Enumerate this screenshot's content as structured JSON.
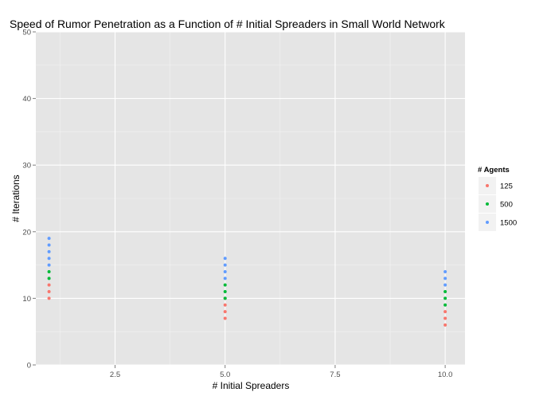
{
  "chart_data": {
    "type": "scatter",
    "title": "Speed of Rumor Penetration as a Function of # Initial Spreaders in Small World Network",
    "xlabel": "# Initial Spreaders",
    "ylabel": "# Iterations",
    "xlim": [
      0.7,
      10.45
    ],
    "ylim": [
      0,
      50
    ],
    "x_ticks": [
      2.5,
      5.0,
      7.5,
      10.0
    ],
    "x_tick_labels": [
      "2.5",
      "5.0",
      "7.5",
      "10.0"
    ],
    "y_ticks": [
      0,
      10,
      20,
      30,
      40,
      50
    ],
    "y_tick_labels": [
      "0",
      "10",
      "20",
      "30",
      "40",
      "50"
    ],
    "grid": true,
    "legend": {
      "title": "# Agents",
      "position": "right"
    },
    "series": [
      {
        "name": "125",
        "color": "#F8766D",
        "points": [
          [
            1,
            10
          ],
          [
            1,
            11
          ],
          [
            1,
            12
          ],
          [
            5,
            7
          ],
          [
            5,
            8
          ],
          [
            5,
            9
          ],
          [
            5,
            10
          ],
          [
            10,
            6
          ],
          [
            10,
            7
          ],
          [
            10,
            8
          ]
        ]
      },
      {
        "name": "500",
        "color": "#00BA38",
        "points": [
          [
            1,
            13
          ],
          [
            1,
            14
          ],
          [
            5,
            10
          ],
          [
            5,
            11
          ],
          [
            5,
            12
          ],
          [
            10,
            9
          ],
          [
            10,
            10
          ],
          [
            10,
            11
          ]
        ]
      },
      {
        "name": "1500",
        "color": "#619CFF",
        "points": [
          [
            1,
            15
          ],
          [
            1,
            16
          ],
          [
            1,
            17
          ],
          [
            1,
            18
          ],
          [
            1,
            19
          ],
          [
            5,
            13
          ],
          [
            5,
            14
          ],
          [
            5,
            15
          ],
          [
            5,
            16
          ],
          [
            10,
            12
          ],
          [
            10,
            13
          ],
          [
            10,
            14
          ]
        ]
      }
    ]
  }
}
